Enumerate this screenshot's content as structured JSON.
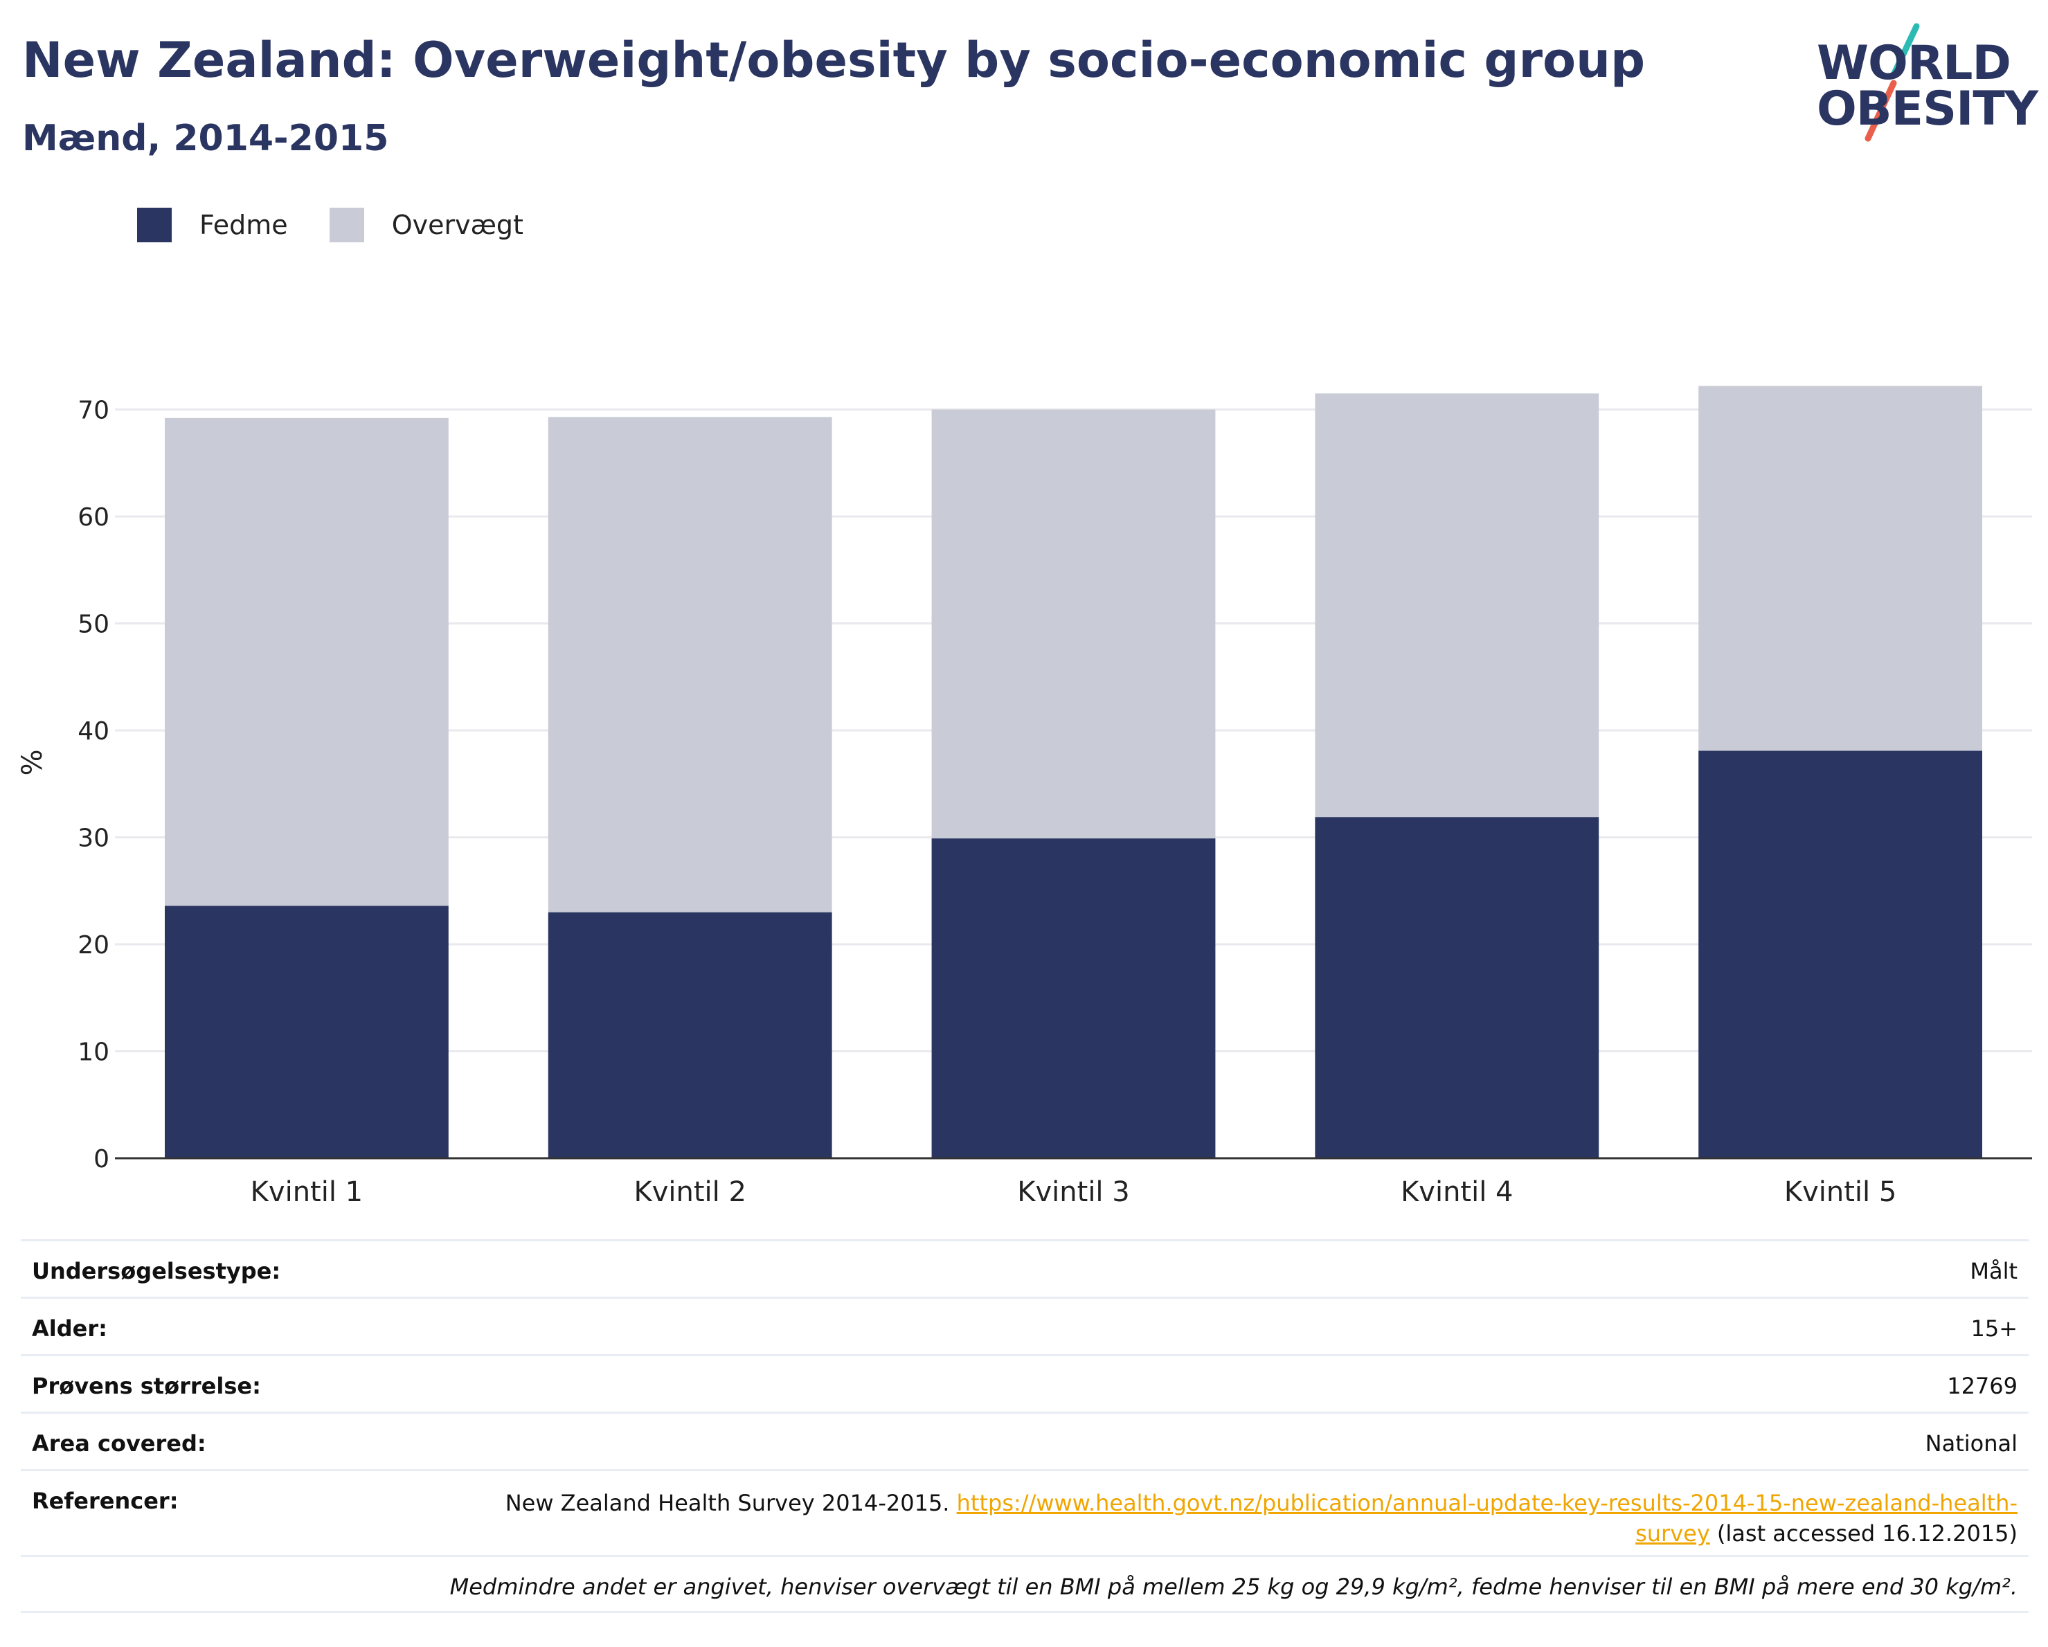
{
  "header": {
    "title": "New Zealand: Overweight/obesity by socio-economic group",
    "subtitle": "Mænd, 2014-2015"
  },
  "logo": {
    "line1": "WORLD",
    "line2": "OBESITY",
    "slash_colors": [
      "#2bbbb4",
      "#e8604c"
    ]
  },
  "legend": {
    "items": [
      {
        "label": "Fedme",
        "color": "#2a3561"
      },
      {
        "label": "Overvægt",
        "color": "#c9cbd7"
      }
    ]
  },
  "chart_data": {
    "type": "bar",
    "stacked": true,
    "categories": [
      "Kvintil 1",
      "Kvintil 2",
      "Kvintil 3",
      "Kvintil 4",
      "Kvintil 5"
    ],
    "series": [
      {
        "name": "Fedme",
        "color": "#2a3561",
        "values": [
          23.6,
          23.0,
          29.9,
          31.9,
          38.1
        ]
      },
      {
        "name": "Overvægt",
        "color": "#c9cbd7",
        "values": [
          45.6,
          46.3,
          40.1,
          39.6,
          34.1
        ]
      }
    ],
    "ylabel": "%",
    "ylim": [
      0,
      78
    ],
    "yticks": [
      0,
      10,
      20,
      30,
      40,
      50,
      60,
      70
    ],
    "grid": true,
    "legend_position": "top-left"
  },
  "info": {
    "survey_type": {
      "label": "Undersøgelsestype:",
      "value": "Målt"
    },
    "age": {
      "label": "Alder:",
      "value": "15+"
    },
    "sample_size": {
      "label": "Prøvens størrelse:",
      "value": "12769"
    },
    "area": {
      "label": "Area covered:",
      "value": "National"
    },
    "references": {
      "label": "Referencer:",
      "text_before": "New Zealand Health Survey 2014-2015. ",
      "link": "https://www.health.govt.nz/publication/annual-update-key-results-2014-15-new-zealand-health-survey",
      "text_after": " (last accessed 16.12.2015)"
    },
    "note": "Medmindre andet er angivet, henviser overvægt til en BMI på mellem 25 kg og 29,9 kg/m², fedme henviser til en BMI på mere end 30 kg/m²."
  }
}
